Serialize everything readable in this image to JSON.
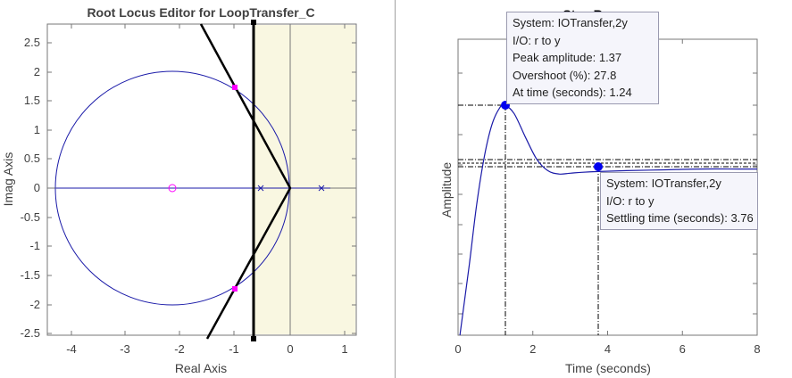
{
  "root_locus": {
    "title": "Root Locus Editor for LoopTransfer_C",
    "xlabel": "Real Axis",
    "ylabel": "Imag Axis",
    "xticks": [
      "-4",
      "-3",
      "-2",
      "-1",
      "0",
      "1"
    ],
    "yticks": [
      "2.5",
      "2",
      "1.5",
      "1",
      "0.5",
      "0",
      "-0.5",
      "-1",
      "-1.5",
      "-2",
      "-2.5"
    ]
  },
  "step_response": {
    "title": "Step Response",
    "xlabel": "Time (seconds)",
    "ylabel": "Amplitude",
    "xticks": [
      "0",
      "2",
      "4",
      "6",
      "8"
    ],
    "peak_tip": {
      "system": "System:  IOTransfer,2y",
      "io": "I/O:  r  to  y",
      "peak": "Peak amplitude:  1.37",
      "overshoot": "Overshoot  (%):  27.8",
      "time": "At time  (seconds):  1.24"
    },
    "settle_tip": {
      "system": "System:  IOTransfer,2y",
      "io": "I/O:  r  to  y",
      "settling": "Settling  time  (seconds):  3.76"
    }
  },
  "colors": {
    "locus": "#1a1aa8",
    "region_fill": "#f9f7e1",
    "poles": "#ff00ff",
    "boundary": "#000000"
  },
  "chart_data": [
    {
      "type": "scatter",
      "title": "Root Locus Editor for LoopTransfer_C",
      "xlabel": "Real Axis",
      "ylabel": "Imag Axis",
      "xlim": [
        -4.4,
        1.2
      ],
      "ylim": [
        -2.55,
        2.85
      ],
      "open_loop_poles": [
        [
          -0.5,
          0
        ],
        [
          0.55,
          0
        ]
      ],
      "open_loop_zeros": [
        [
          -2.2,
          0
        ]
      ],
      "closed_loop_poles": [
        [
          -1.0,
          1.73
        ],
        [
          -1.0,
          -1.73
        ]
      ],
      "locus_circle": {
        "center": [
          -2.2,
          0
        ],
        "radius": 2.08
      },
      "damping_boundary": {
        "vertex": [
          0,
          0
        ],
        "points": [
          [
            -1.5,
            2.9
          ],
          [
            -1.5,
            -2.6
          ]
        ]
      },
      "settling_boundary_x": -0.7,
      "shaded_region": [
        -0.7,
        1.2
      ]
    },
    {
      "type": "line",
      "title": "Step Response",
      "xlabel": "Time (seconds)",
      "ylabel": "Amplitude",
      "xlim": [
        0,
        8
      ],
      "ylim": [
        0,
        1.6
      ],
      "x": [
        0.05,
        0.3,
        0.5,
        0.7,
        0.9,
        1.1,
        1.24,
        1.5,
        1.8,
        2.1,
        2.4,
        2.7,
        3.0,
        3.3,
        3.76,
        4.5,
        5.5,
        6.5,
        7.5,
        8.0
      ],
      "y": [
        0.0,
        0.42,
        0.78,
        1.06,
        1.25,
        1.35,
        1.37,
        1.32,
        1.18,
        1.05,
        0.98,
        0.96,
        0.965,
        0.97,
        0.975,
        0.98,
        0.985,
        0.99,
        0.99,
        0.99
      ],
      "peak": {
        "time": 1.24,
        "amplitude": 1.37,
        "overshoot_pct": 27.8
      },
      "settling_time": 3.76
    }
  ]
}
